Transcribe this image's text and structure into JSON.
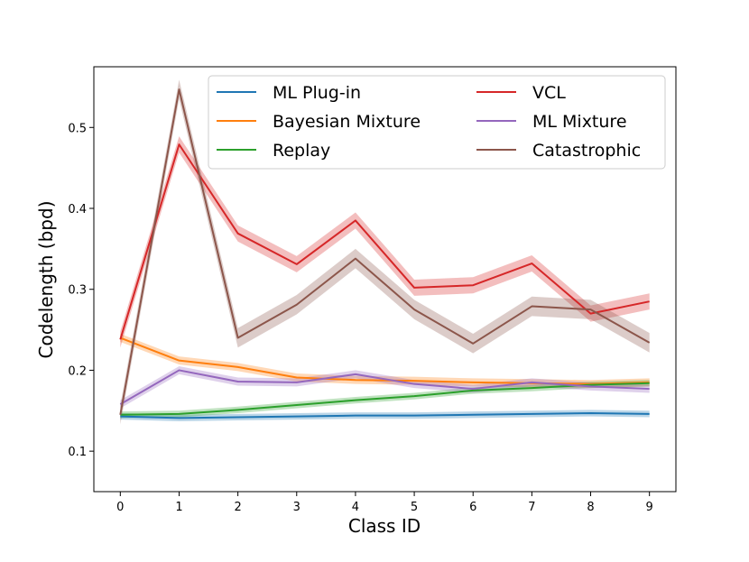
{
  "chart_data": {
    "type": "line",
    "title": "",
    "xlabel": "Class ID",
    "ylabel": "Codelength (bpd)",
    "x": [
      0,
      1,
      2,
      3,
      4,
      5,
      6,
      7,
      8,
      9
    ],
    "xlim": [
      -0.45,
      9.45
    ],
    "ylim": [
      0.05,
      0.575
    ],
    "xticks": [
      "0",
      "1",
      "2",
      "3",
      "4",
      "5",
      "6",
      "7",
      "8",
      "9"
    ],
    "yticks": [
      "0.1",
      "0.2",
      "0.3",
      "0.4",
      "0.5"
    ],
    "ytick_values": [
      0.1,
      0.2,
      0.3,
      0.4,
      0.5
    ],
    "grid": false,
    "legend_position": "top-right",
    "series": [
      {
        "name": "ML Plug-in",
        "color": "#1f77b4",
        "values": [
          0.143,
          0.141,
          0.142,
          0.143,
          0.144,
          0.144,
          0.145,
          0.146,
          0.147,
          0.146
        ],
        "band": 0.004
      },
      {
        "name": "Bayesian Mixture",
        "color": "#ff7f0e",
        "values": [
          0.24,
          0.212,
          0.204,
          0.191,
          0.188,
          0.187,
          0.185,
          0.184,
          0.183,
          0.185
        ],
        "band": 0.005
      },
      {
        "name": "Replay",
        "color": "#2ca02c",
        "values": [
          0.145,
          0.146,
          0.151,
          0.157,
          0.163,
          0.168,
          0.175,
          0.178,
          0.182,
          0.184
        ],
        "band": 0.004
      },
      {
        "name": "VCL",
        "color": "#d62728",
        "values": [
          0.238,
          0.479,
          0.369,
          0.331,
          0.385,
          0.302,
          0.305,
          0.332,
          0.27,
          0.285
        ],
        "band": 0.01
      },
      {
        "name": "ML Mixture",
        "color": "#9467bd",
        "values": [
          0.158,
          0.2,
          0.186,
          0.185,
          0.195,
          0.183,
          0.177,
          0.185,
          0.18,
          0.177
        ],
        "band": 0.005
      },
      {
        "name": "Catastrophic",
        "color": "#8c564b",
        "values": [
          0.145,
          0.547,
          0.24,
          0.281,
          0.338,
          0.275,
          0.233,
          0.279,
          0.275,
          0.234
        ],
        "band": 0.012
      }
    ]
  }
}
